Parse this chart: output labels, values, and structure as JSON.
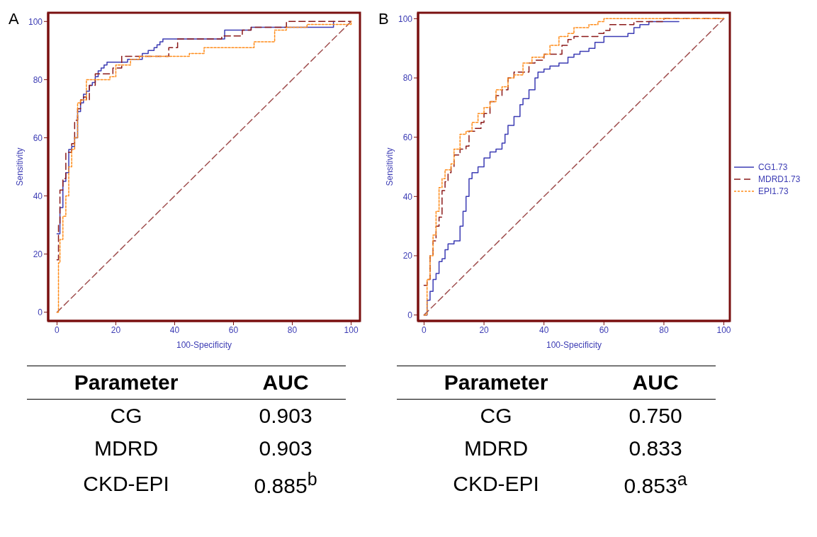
{
  "chart_data": [
    {
      "type": "step",
      "title": "A",
      "xlabel": "100-Specificity",
      "ylabel": "Sensitivity",
      "xlim": [
        -3,
        103
      ],
      "ylim": [
        -3,
        103
      ],
      "xticks": [
        0,
        20,
        40,
        60,
        80,
        100
      ],
      "yticks": [
        0,
        20,
        40,
        60,
        80,
        100
      ],
      "grid": false,
      "legend": false,
      "series": [
        {
          "color": "#3c3cb4",
          "line_style": "solid",
          "x": [
            0,
            1,
            2,
            3,
            4,
            5,
            6,
            7,
            8,
            9,
            10,
            11,
            12,
            13,
            14,
            15,
            16,
            17,
            22,
            24,
            25,
            29,
            31,
            33,
            34,
            35,
            36,
            41,
            56,
            57,
            65,
            66,
            84,
            94
          ],
          "values": [
            27,
            36,
            45,
            48,
            56,
            57,
            60,
            69,
            72,
            75,
            76,
            78,
            79,
            81,
            83,
            84,
            85,
            86,
            86,
            87,
            87,
            89,
            90,
            91,
            92,
            93,
            94,
            94,
            94,
            97,
            97,
            98,
            98,
            100
          ]
        },
        {
          "color": "#8b1a1a",
          "line_style": "dashed",
          "x": [
            0,
            0.5,
            1,
            2,
            3,
            4,
            5,
            6,
            7,
            8,
            9,
            10,
            11,
            13,
            16,
            19,
            22,
            25,
            38,
            41,
            56,
            63,
            66,
            78,
            80,
            100
          ],
          "values": [
            18,
            30,
            42,
            46,
            55,
            55,
            58,
            66,
            70,
            73,
            74,
            73,
            78,
            82,
            82,
            84,
            88,
            88,
            91,
            94,
            95,
            97,
            98,
            100,
            100,
            100
          ]
        },
        {
          "color": "#ff8c1a",
          "line_style": "dotted",
          "x": [
            0,
            0.5,
            1,
            2,
            3,
            4,
            5,
            6,
            7,
            8,
            10,
            12,
            15,
            18,
            20,
            25,
            28,
            45,
            50,
            67,
            74,
            78,
            85,
            100
          ],
          "values": [
            0,
            17,
            25,
            33,
            40,
            50,
            56,
            60,
            72,
            73,
            80,
            80,
            80,
            81,
            85,
            87,
            88,
            89,
            91,
            93,
            97,
            98,
            99,
            100
          ]
        },
        {
          "type": "line",
          "color": "#a05050",
          "line_style": "dashed",
          "x": [
            0,
            100
          ],
          "values": [
            0,
            100
          ]
        }
      ],
      "annotations": [
        "Parameter",
        "AUC",
        "CG",
        "0.903",
        "MDRD",
        "0.903",
        "CKD-EPI",
        "0.885$^{b}$"
      ]
    },
    {
      "type": "step",
      "title": "B",
      "xlabel": "100-Specificity",
      "ylabel": "Sensitivity",
      "xlim": [
        -2,
        102
      ],
      "ylim": [
        -2,
        102
      ],
      "xticks": [
        0,
        20,
        40,
        60,
        80,
        100
      ],
      "yticks": [
        0,
        20,
        40,
        60,
        80,
        100
      ],
      "grid": false,
      "legend": "right",
      "series": [
        {
          "name": "CG1.73",
          "color": "#3c3cb4",
          "line_style": "solid",
          "x": [
            0,
            1,
            2,
            3,
            4,
            5,
            6,
            7,
            8,
            9,
            10,
            12,
            13,
            14,
            15,
            16,
            18,
            20,
            22,
            24,
            26,
            27,
            28,
            30,
            32,
            33,
            35,
            37,
            38,
            40,
            42,
            45,
            48,
            50,
            52,
            55,
            57,
            60,
            65,
            68,
            70,
            72,
            75,
            80,
            85
          ],
          "values": [
            0,
            5,
            8,
            12,
            14,
            18,
            19,
            22,
            24,
            24,
            25,
            30,
            35,
            40,
            46,
            48,
            50,
            53,
            55,
            56,
            58,
            61,
            64,
            67,
            71,
            73,
            76,
            80,
            82,
            83,
            84,
            85,
            87,
            88,
            89,
            90,
            92,
            94,
            94,
            95,
            97,
            98,
            99,
            99,
            99
          ]
        },
        {
          "name": "MDRD1.73",
          "color": "#8b1a1a",
          "line_style": "dashed",
          "x": [
            0,
            1,
            2,
            3,
            4,
            5,
            6,
            7,
            8,
            9,
            10,
            12,
            14,
            15,
            17,
            19,
            20,
            22,
            24,
            26,
            28,
            30,
            33,
            35,
            37,
            40,
            44,
            46,
            48,
            50,
            55,
            58,
            60,
            62,
            65,
            70,
            75,
            80,
            100
          ],
          "values": [
            10,
            12,
            20,
            25,
            30,
            33,
            42,
            45,
            48,
            50,
            54,
            56,
            57,
            62,
            63,
            65,
            68,
            72,
            74,
            76,
            80,
            82,
            82,
            85,
            86,
            88,
            88,
            91,
            93,
            94,
            94,
            95,
            96,
            98,
            98,
            99,
            99,
            100,
            100
          ]
        },
        {
          "name": "EPI1.73",
          "color": "#ff8c1a",
          "line_style": "dotted",
          "x": [
            0,
            1,
            2,
            3,
            4,
            5,
            6,
            7,
            9,
            10,
            12,
            14,
            16,
            18,
            20,
            22,
            24,
            26,
            28,
            30,
            33,
            36,
            40,
            42,
            45,
            48,
            50,
            55,
            58,
            60,
            100
          ],
          "values": [
            0,
            12,
            20,
            27,
            35,
            43,
            46,
            49,
            51,
            56,
            61,
            62,
            65,
            68,
            70,
            72,
            76,
            77,
            80,
            81,
            85,
            87,
            88,
            91,
            94,
            95,
            97,
            98,
            99,
            100,
            100
          ]
        },
        {
          "type": "line",
          "color": "#a05050",
          "line_style": "dashed",
          "x": [
            0,
            100
          ],
          "values": [
            0,
            100
          ]
        }
      ],
      "annotations": [
        "Parameter",
        "AUC",
        "CG",
        "0.750",
        "MDRD",
        "0.833",
        "CKD-EPI",
        "0.853$^{a}$"
      ]
    }
  ]
}
